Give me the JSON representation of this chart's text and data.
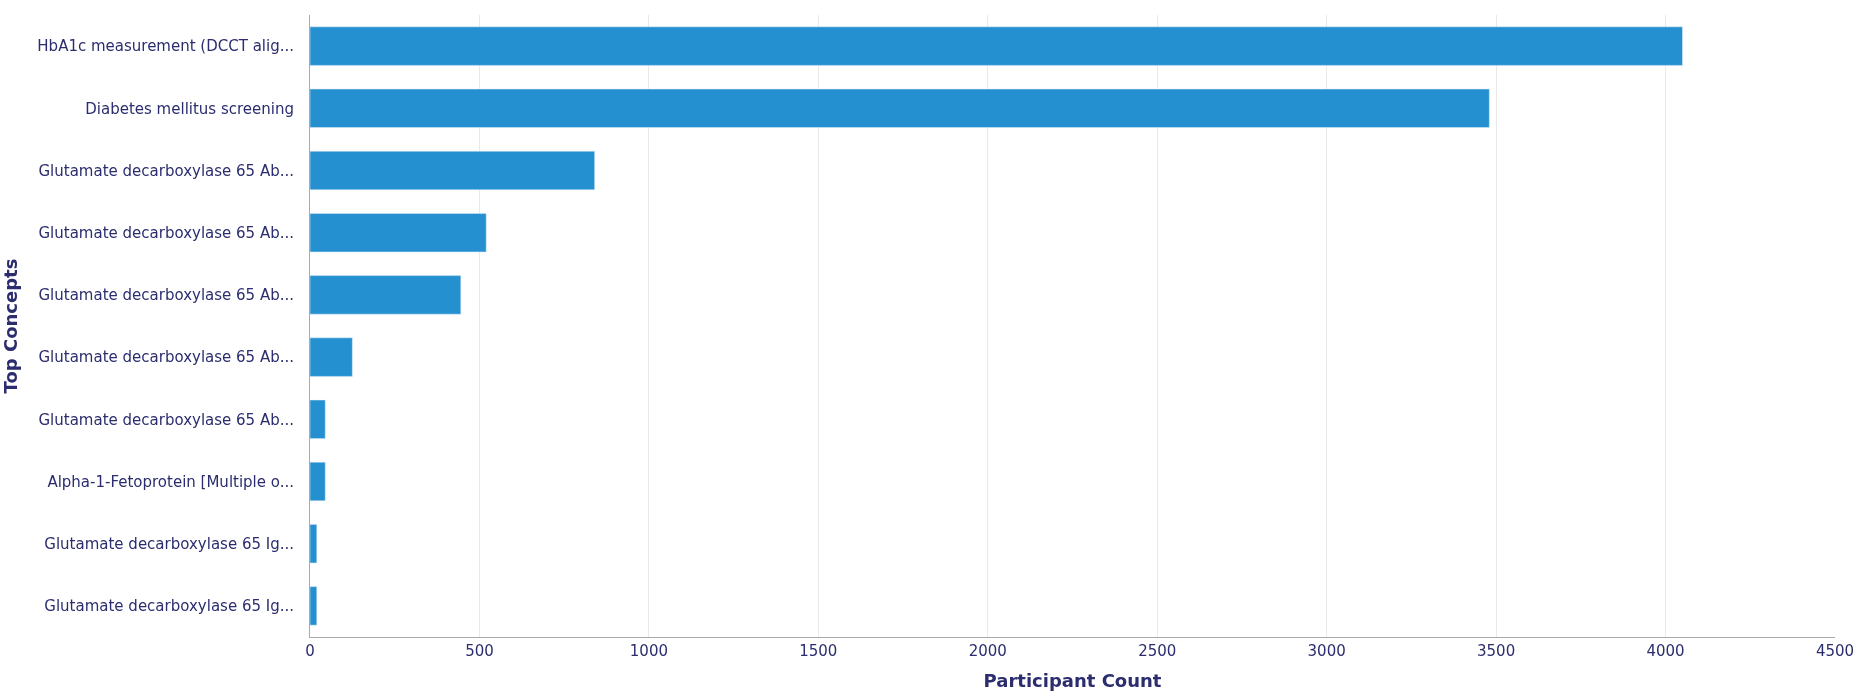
{
  "chart_data": {
    "type": "bar",
    "orientation": "horizontal",
    "xlabel": "Participant Count",
    "ylabel": "Top Concepts",
    "categories": [
      "HbA1c measurement (DCCT alig...",
      "Diabetes mellitus screening",
      "Glutamate decarboxylase 65 Ab...",
      "Glutamate decarboxylase 65 Ab...",
      "Glutamate decarboxylase 65 Ab...",
      "Glutamate decarboxylase 65 Ab...",
      "Glutamate decarboxylase 65 Ab...",
      "Alpha-1-Fetoprotein [Multiple o...",
      "Glutamate decarboxylase 65 Ig...",
      "Glutamate decarboxylase 65 Ig..."
    ],
    "values": [
      4050,
      3480,
      840,
      520,
      445,
      125,
      45,
      45,
      20,
      20
    ],
    "color": "#2490d0",
    "xlim": [
      0,
      4500
    ],
    "xticks": [
      0,
      500,
      1000,
      1500,
      2000,
      2500,
      3000,
      3500,
      4000,
      4500
    ],
    "grid": "x",
    "legend": false
  }
}
